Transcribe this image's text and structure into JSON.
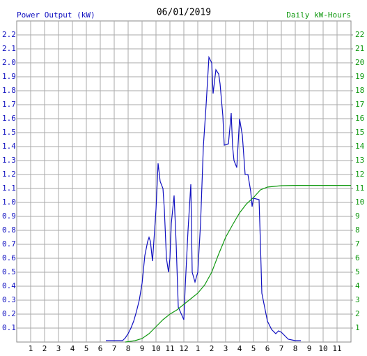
{
  "chart_data": {
    "type": "line",
    "title": "06/01/2019",
    "ylabel": "Power Output (kW)",
    "y2label": "Daily kW-Hours",
    "xlim": [
      0,
      24
    ],
    "xticks": [
      1,
      2,
      3,
      4,
      5,
      6,
      7,
      8,
      9,
      10,
      11,
      12,
      {
        "value": 13,
        "label": "1"
      },
      {
        "value": 14,
        "label": "2"
      },
      {
        "value": 15,
        "label": "3"
      },
      {
        "value": 16,
        "label": "4"
      },
      {
        "value": 17,
        "label": "5"
      },
      {
        "value": 18,
        "label": "6"
      },
      {
        "value": 19,
        "label": "7"
      },
      {
        "value": 20,
        "label": "8"
      },
      {
        "value": 21,
        "label": "9"
      },
      {
        "value": 22,
        "label": "10"
      },
      {
        "value": 23,
        "label": "11"
      }
    ],
    "ylim": [
      0,
      2.3
    ],
    "yticks": [
      0.1,
      0.2,
      0.3,
      0.4,
      0.5,
      0.6,
      0.7,
      0.8,
      0.9,
      {
        "value": 1,
        "label": "1.0"
      },
      1.1,
      1.2,
      1.3,
      1.4,
      1.5,
      1.6,
      1.7,
      1.8,
      1.9,
      {
        "value": 2,
        "label": "2.0"
      },
      2.1,
      2.2
    ],
    "y2lim": [
      0,
      23
    ],
    "y2ticks": [
      1,
      2,
      3,
      4,
      5,
      6,
      7,
      8,
      9,
      10,
      11,
      12,
      13,
      14,
      15,
      16,
      17,
      18,
      19,
      20,
      21,
      22
    ],
    "grid": true,
    "series": [
      {
        "name": "Power Output (kW)",
        "color": "#1010c0",
        "x": [
          6.4,
          7.0,
          7.6,
          7.8,
          8.0,
          8.2,
          8.4,
          8.6,
          8.8,
          9.0,
          9.2,
          9.4,
          9.5,
          9.6,
          9.75,
          9.9,
          10.0,
          10.15,
          10.3,
          10.5,
          10.6,
          10.75,
          10.9,
          11.0,
          11.1,
          11.3,
          11.45,
          11.6,
          12.0,
          12.1,
          12.3,
          12.5,
          12.6,
          12.8,
          13.0,
          13.2,
          13.4,
          13.6,
          13.8,
          14.0,
          14.1,
          14.3,
          14.5,
          14.6,
          14.8,
          14.9,
          15.2,
          15.4,
          15.5,
          15.6,
          15.8,
          16.0,
          16.2,
          16.4,
          16.6,
          16.8,
          16.9,
          17.0,
          17.4,
          17.5,
          17.6,
          17.8,
          18.0,
          18.3,
          18.6,
          18.8,
          19.0,
          19.3,
          19.5,
          20.0,
          20.4
        ],
        "values": [
          0.01,
          0.01,
          0.01,
          0.03,
          0.06,
          0.1,
          0.15,
          0.22,
          0.3,
          0.42,
          0.62,
          0.72,
          0.75,
          0.72,
          0.58,
          0.8,
          0.95,
          1.28,
          1.15,
          1.1,
          0.95,
          0.6,
          0.5,
          0.6,
          0.85,
          1.05,
          0.7,
          0.25,
          0.16,
          0.4,
          0.8,
          1.13,
          0.5,
          0.43,
          0.5,
          0.85,
          1.4,
          1.7,
          2.04,
          2.0,
          1.78,
          1.95,
          1.92,
          1.85,
          1.62,
          1.41,
          1.42,
          1.64,
          1.4,
          1.3,
          1.25,
          1.6,
          1.48,
          1.2,
          1.2,
          1.08,
          0.97,
          1.03,
          1.02,
          0.7,
          0.35,
          0.25,
          0.15,
          0.09,
          0.06,
          0.08,
          0.07,
          0.04,
          0.02,
          0.01,
          0.01
        ]
      },
      {
        "name": "Daily kW-Hours",
        "color": "#119911",
        "axis": "y2",
        "x": [
          7.8,
          8.5,
          9.0,
          9.5,
          10.0,
          10.5,
          11.0,
          11.5,
          12.0,
          12.5,
          13.0,
          13.5,
          14.0,
          14.5,
          15.0,
          15.5,
          16.0,
          16.5,
          17.0,
          17.5,
          18.0,
          19.0,
          20.0,
          24.0
        ],
        "values": [
          0,
          0.1,
          0.25,
          0.6,
          1.1,
          1.6,
          2.0,
          2.3,
          2.7,
          3.1,
          3.5,
          4.1,
          5.0,
          6.3,
          7.5,
          8.4,
          9.25,
          9.9,
          10.35,
          10.9,
          11.1,
          11.2,
          11.22,
          11.22
        ]
      }
    ]
  }
}
